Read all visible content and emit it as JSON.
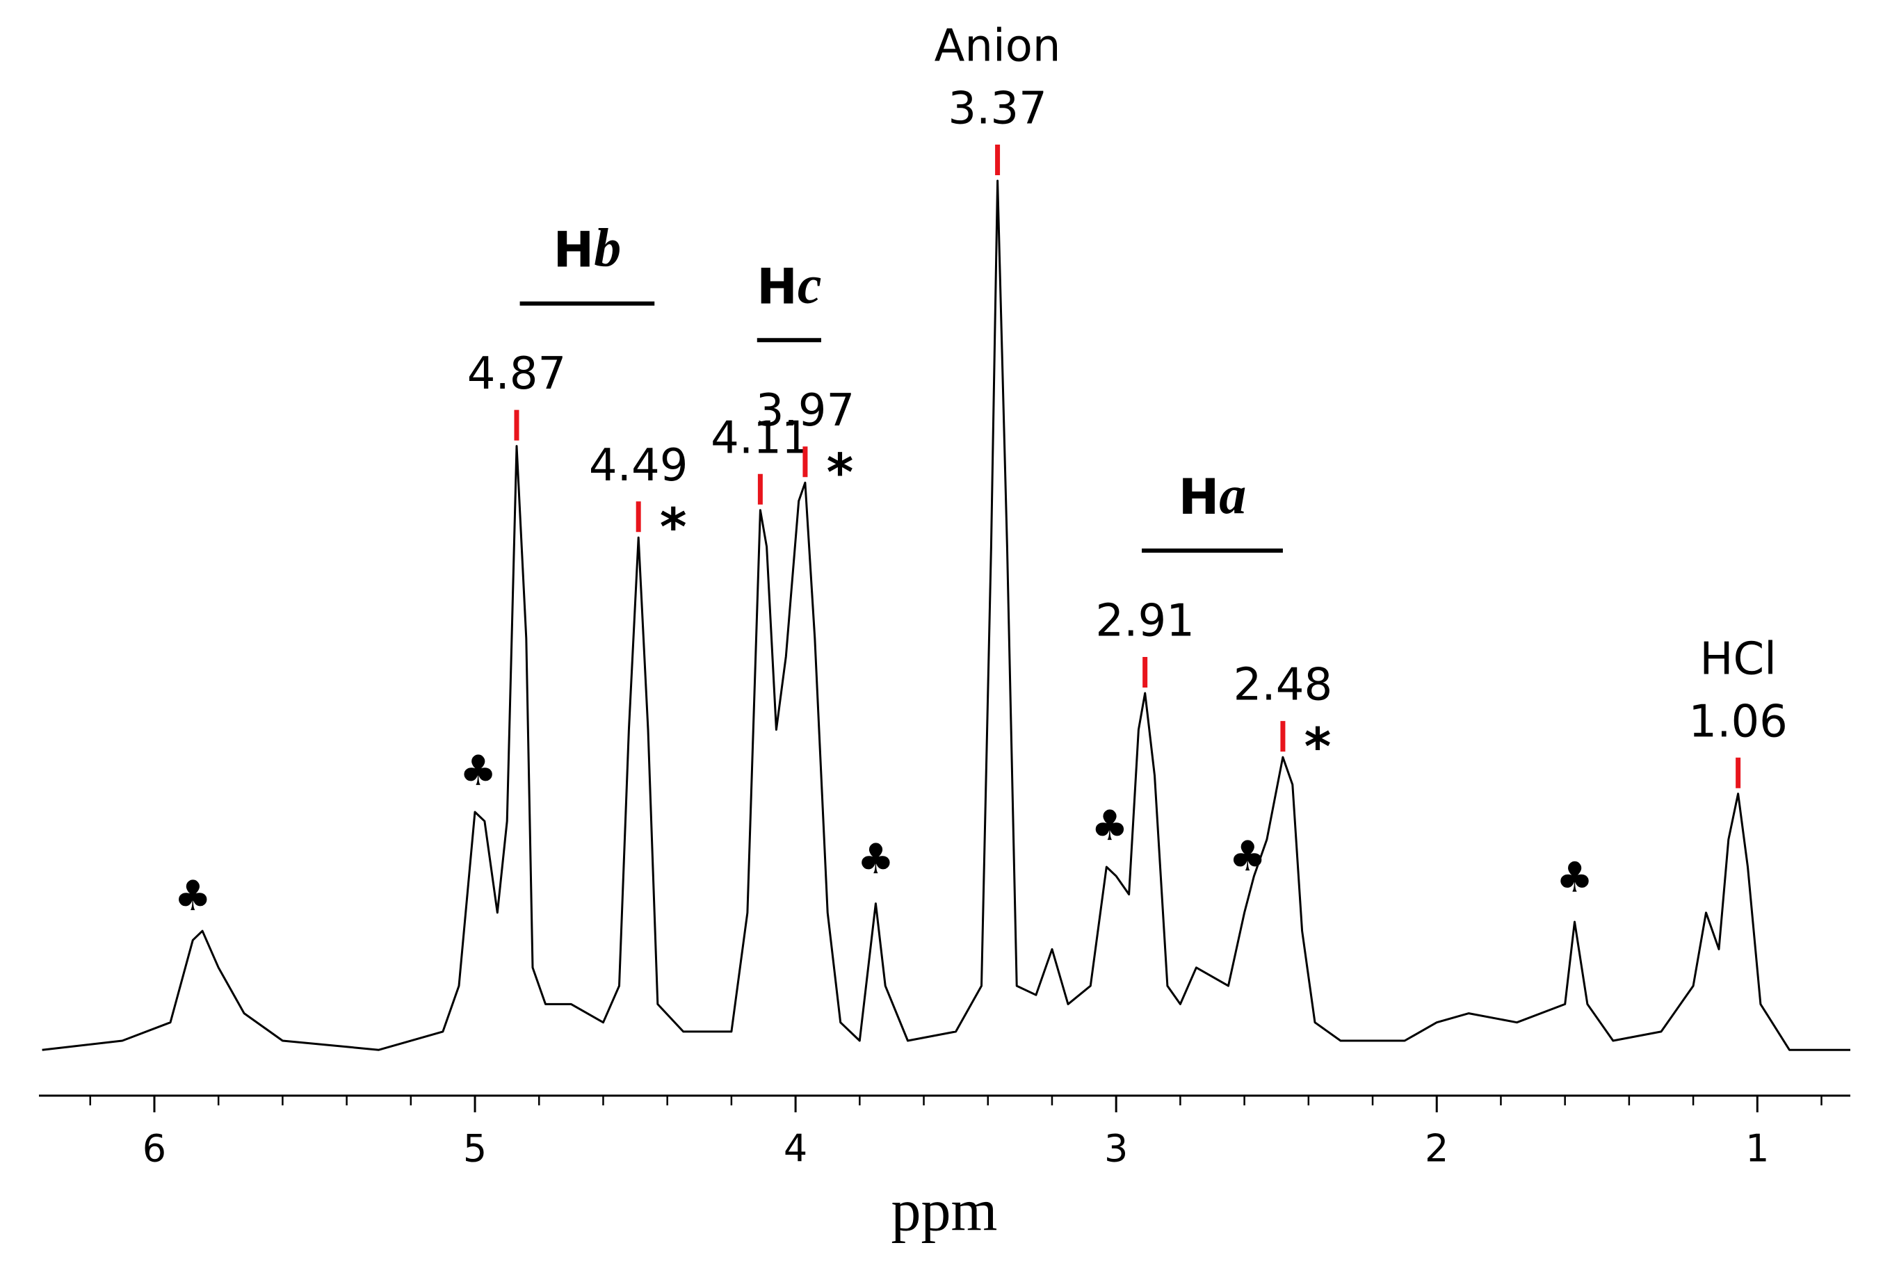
{
  "chart_data": {
    "type": "line",
    "xlabel": "ppm",
    "xlim": [
      6.36,
      0.71
    ],
    "xticks": [
      6,
      5,
      4,
      3,
      2,
      1
    ],
    "xminorticks": [
      6.2,
      5.8,
      5.6,
      5.4,
      5.2,
      4.8,
      4.6,
      4.4,
      4.2,
      3.8,
      3.6,
      3.4,
      3.2,
      2.8,
      2.6,
      2.4,
      2.2,
      1.8,
      1.6,
      1.4,
      1.2,
      0.8
    ],
    "ylim": [
      0,
      100
    ],
    "color": "#000000",
    "peak_color": "#e8141c",
    "x": [
      6.35,
      6.1,
      5.95,
      5.88,
      5.85,
      5.8,
      5.72,
      5.6,
      5.3,
      5.1,
      5.05,
      5.0,
      4.97,
      4.93,
      4.9,
      4.87,
      4.84,
      4.82,
      4.78,
      4.7,
      4.6,
      4.55,
      4.52,
      4.49,
      4.46,
      4.43,
      4.35,
      4.2,
      4.15,
      4.11,
      4.09,
      4.06,
      4.03,
      3.99,
      3.97,
      3.94,
      3.9,
      3.86,
      3.8,
      3.75,
      3.72,
      3.65,
      3.5,
      3.42,
      3.39,
      3.37,
      3.34,
      3.31,
      3.25,
      3.2,
      3.15,
      3.08,
      3.03,
      3.0,
      2.96,
      2.93,
      2.91,
      2.88,
      2.84,
      2.8,
      2.75,
      2.7,
      2.65,
      2.6,
      2.57,
      2.53,
      2.48,
      2.45,
      2.42,
      2.38,
      2.3,
      2.1,
      2.0,
      1.9,
      1.75,
      1.6,
      1.57,
      1.53,
      1.45,
      1.3,
      1.2,
      1.16,
      1.12,
      1.09,
      1.06,
      1.03,
      0.99,
      0.9,
      0.71
    ],
    "values": [
      5,
      6,
      8,
      17,
      18,
      14,
      9,
      6,
      5,
      7,
      12,
      31,
      30,
      20,
      30,
      71,
      50,
      14,
      10,
      10,
      8,
      12,
      40,
      61,
      40,
      10,
      7,
      7,
      20,
      64,
      60,
      40,
      48,
      65,
      67,
      50,
      20,
      8,
      6,
      21,
      12,
      6,
      7,
      12,
      60,
      100,
      60,
      12,
      11,
      16,
      10,
      12,
      25,
      24,
      22,
      40,
      44,
      35,
      12,
      10,
      14,
      13,
      12,
      20,
      24,
      28,
      37,
      34,
      18,
      8,
      6,
      6,
      8,
      9,
      8,
      10,
      19,
      10,
      6,
      7,
      12,
      20,
      16,
      28,
      33,
      25,
      10,
      5,
      5
    ],
    "peaks": [
      {
        "ppm": 4.87
      },
      {
        "ppm": 4.49,
        "mark": "*"
      },
      {
        "ppm": 4.11
      },
      {
        "ppm": 3.97,
        "mark": "*"
      },
      {
        "ppm": 3.37,
        "name": "Anion"
      },
      {
        "ppm": 2.91
      },
      {
        "ppm": 2.48,
        "mark": "*"
      },
      {
        "ppm": 1.06,
        "name": "HCl"
      }
    ],
    "symbols": [
      {
        "text": "♣",
        "ppm": 5.88
      },
      {
        "text": "♣",
        "ppm": 4.99
      },
      {
        "text": "♣",
        "ppm": 3.75
      },
      {
        "text": "♣",
        "ppm": 3.02
      },
      {
        "text": "♣",
        "ppm": 2.59
      },
      {
        "text": "♣",
        "ppm": 1.57
      }
    ],
    "groups": [
      {
        "symbol": "H",
        "letter": "b",
        "from": 4.86,
        "to": 4.44
      },
      {
        "symbol": "H",
        "letter": "c",
        "from": 4.12,
        "to": 3.92
      },
      {
        "symbol": "H",
        "letter": "a",
        "from": 2.92,
        "to": 2.48
      }
    ]
  }
}
